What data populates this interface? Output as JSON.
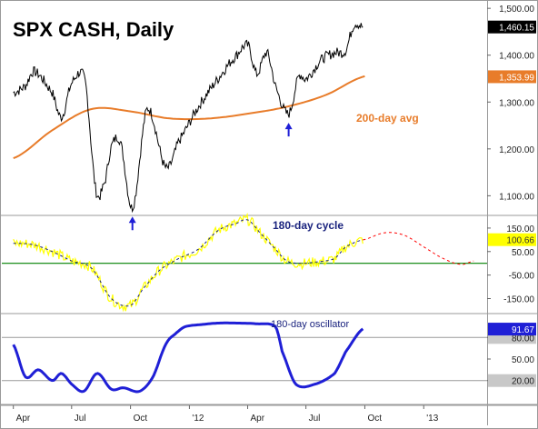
{
  "chart_data": [
    {
      "type": "line",
      "title": "SPX CASH, Daily",
      "ylim": [
        1060,
        1510
      ],
      "y_ticks": [
        {
          "label": "1,500.00",
          "value": 1500
        },
        {
          "label": "1,400.00",
          "value": 1400
        },
        {
          "label": "1,300.00",
          "value": 1300
        },
        {
          "label": "1,200.00",
          "value": 1200
        },
        {
          "label": "1,100.00",
          "value": 1100
        }
      ],
      "price_tag": {
        "label": "1,460.15",
        "value": 1460.15
      },
      "ma_tag": {
        "label": "1,353.99",
        "value": 1353.99
      },
      "ma_label": "200-day avg",
      "series": [
        {
          "role": "price",
          "color": "#000000",
          "x": [
            "2011-04-01",
            "2011-04-20",
            "2011-05-03",
            "2011-06-01",
            "2011-06-15",
            "2011-07-01",
            "2011-07-22",
            "2011-08-08",
            "2011-08-22",
            "2011-09-01",
            "2011-09-15",
            "2011-10-04",
            "2011-10-27",
            "2011-11-25",
            "2011-12-15",
            "2012-01-15",
            "2012-02-15",
            "2012-03-15",
            "2012-04-02",
            "2012-04-15",
            "2012-05-01",
            "2012-05-15",
            "2012-06-04",
            "2012-06-20",
            "2012-07-01",
            "2012-07-25",
            "2012-08-15",
            "2012-09-01",
            "2012-09-14",
            "2012-09-28"
          ],
          "values": [
            1320,
            1335,
            1365,
            1320,
            1268,
            1340,
            1345,
            1112,
            1130,
            1205,
            1215,
            1075,
            1285,
            1160,
            1215,
            1290,
            1350,
            1400,
            1420,
            1360,
            1405,
            1330,
            1275,
            1355,
            1350,
            1390,
            1405,
            1410,
            1465,
            1460
          ]
        },
        {
          "role": "200-day avg",
          "color": "#e87c2a",
          "x": [
            "2011-04-01",
            "2011-06-01",
            "2011-08-01",
            "2011-10-01",
            "2011-12-01",
            "2012-02-01",
            "2012-04-01",
            "2012-06-01",
            "2012-08-01",
            "2012-10-01"
          ],
          "values": [
            1180,
            1240,
            1285,
            1280,
            1265,
            1265,
            1275,
            1290,
            1315,
            1355
          ]
        }
      ],
      "arrows": [
        {
          "x": "2011-10-04",
          "value": 1075
        },
        {
          "x": "2012-06-04",
          "value": 1275
        }
      ],
      "xlabel": "",
      "ylabel": ""
    },
    {
      "type": "line",
      "title": "180-day cycle",
      "ylim": [
        -210,
        200
      ],
      "y_ticks": [
        {
          "label": "150.00",
          "value": 150
        },
        {
          "label": "50.00",
          "value": 50
        },
        {
          "label": "-50.00",
          "value": -50
        },
        {
          "label": "-150.00",
          "value": -150
        }
      ],
      "value_tag": {
        "label": "100.66",
        "value": 100.66
      },
      "zero_line": 0,
      "series": [
        {
          "role": "cycle data",
          "color": "#ffff00",
          "x": [
            "2011-04-01",
            "2011-05-01",
            "2011-06-01",
            "2011-07-01",
            "2011-08-01",
            "2011-09-01",
            "2011-10-01",
            "2011-10-20",
            "2011-11-15",
            "2011-12-15",
            "2012-01-15",
            "2012-02-15",
            "2012-03-15",
            "2012-04-01",
            "2012-04-20",
            "2012-05-15",
            "2012-06-01",
            "2012-06-20",
            "2012-07-15",
            "2012-08-15",
            "2012-09-01",
            "2012-09-28"
          ],
          "values": [
            85,
            80,
            50,
            10,
            -20,
            -150,
            -180,
            -110,
            -30,
            20,
            60,
            140,
            170,
            185,
            130,
            60,
            10,
            0,
            5,
            20,
            70,
            100
          ]
        },
        {
          "role": "projection",
          "color": "#ff0000",
          "x": [
            "2012-09-28",
            "2012-11-01",
            "2012-12-01",
            "2013-01-01",
            "2013-02-01",
            "2013-03-01",
            "2013-03-20"
          ],
          "values": [
            100,
            130,
            120,
            70,
            20,
            -5,
            10
          ]
        }
      ],
      "xlabel": "",
      "ylabel": ""
    },
    {
      "type": "line",
      "title": "180-day oscillator",
      "ylim": [
        -12,
        112
      ],
      "y_ticks": [
        {
          "label": "80.00",
          "value": 80
        },
        {
          "label": "50.00",
          "value": 50
        },
        {
          "label": "20.00",
          "value": 20
        }
      ],
      "value_tag": {
        "label": "91.67",
        "value": 91.67
      },
      "levels": [
        80,
        20
      ],
      "series": [
        {
          "role": "oscillator",
          "color": "#1f1fd6",
          "x": [
            "2011-04-01",
            "2011-04-20",
            "2011-05-10",
            "2011-06-01",
            "2011-06-15",
            "2011-07-01",
            "2011-07-20",
            "2011-08-10",
            "2011-09-01",
            "2011-09-20",
            "2011-10-15",
            "2011-11-05",
            "2011-11-25",
            "2011-12-10",
            "2011-12-25",
            "2012-01-20",
            "2012-02-15",
            "2012-03-15",
            "2012-04-15",
            "2012-05-15",
            "2012-05-25",
            "2012-06-15",
            "2012-07-15",
            "2012-08-15",
            "2012-09-01",
            "2012-09-28"
          ],
          "values": [
            70,
            25,
            35,
            20,
            30,
            15,
            5,
            30,
            8,
            10,
            5,
            25,
            70,
            85,
            95,
            98,
            100,
            100,
            99,
            95,
            60,
            15,
            15,
            30,
            60,
            92
          ]
        }
      ],
      "xlabel": "",
      "ylabel": ""
    }
  ],
  "x_axis": {
    "range": [
      "2011-03-14",
      "2013-04-10"
    ],
    "ticks": [
      {
        "label": "Apr",
        "date": "2011-04-01"
      },
      {
        "label": "Jul",
        "date": "2011-07-01"
      },
      {
        "label": "Oct",
        "date": "2011-10-01"
      },
      {
        "label": "'12",
        "date": "2012-01-01"
      },
      {
        "label": "Apr",
        "date": "2012-04-01"
      },
      {
        "label": "Jul",
        "date": "2012-07-01"
      },
      {
        "label": "Oct",
        "date": "2012-10-01"
      },
      {
        "label": "'13",
        "date": "2013-01-01"
      }
    ]
  },
  "colors": {
    "price": "#000000",
    "ma": "#e87c2a",
    "cycle_data": "#ffff00",
    "cycle_projection": "#ff0000",
    "oscillator": "#1f1fd6",
    "cycle_fit": "#1a237e",
    "zero_line": "#008000",
    "arrow": "#1f1fd6"
  }
}
